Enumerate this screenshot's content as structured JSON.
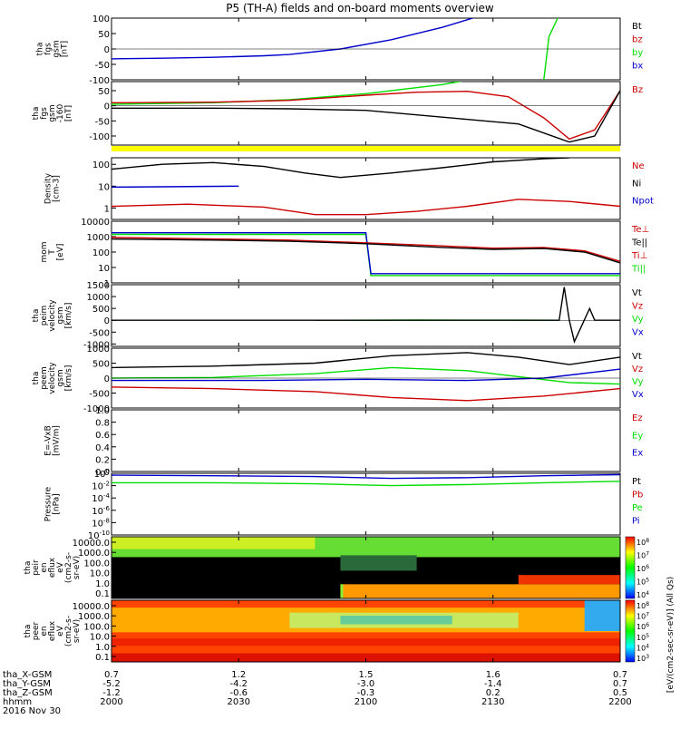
{
  "title": "P5 (TH-A) fields and on-board moments overview",
  "colors": {
    "black": "#000000",
    "red": "#cc0000",
    "green": "#00dd00",
    "blue": "#0000cc",
    "yellow": "#ffff00"
  },
  "chart_data": [
    {
      "type": "line",
      "ylabel": [
        "tha",
        "fgs",
        "gsm",
        "[nT]"
      ],
      "yticks": [
        "100",
        "50",
        "0",
        "-50",
        "-100"
      ],
      "ylim": [
        -100,
        100
      ],
      "legend": [
        {
          "text": "Bt",
          "color": "#000000"
        },
        {
          "text": "bz",
          "color": "#cc0000"
        },
        {
          "text": "by",
          "color": "#00dd00"
        },
        {
          "text": "bx",
          "color": "#0000cc"
        }
      ],
      "series": [
        {
          "name": "bx",
          "color": "#0000cc",
          "x": [
            0,
            0.1,
            0.2,
            0.3,
            0.35,
            0.45,
            0.55,
            0.65,
            0.72,
            0.76
          ],
          "y": [
            -32,
            -30,
            -27,
            -22,
            -18,
            0,
            30,
            70,
            105,
            140
          ]
        },
        {
          "name": "by",
          "color": "#00dd00",
          "x": [
            0.85,
            0.86,
            0.88
          ],
          "y": [
            -100,
            40,
            110
          ]
        }
      ]
    },
    {
      "type": "line",
      "ylabel": [
        "tha",
        "fgs",
        "gsm",
        "-160",
        "[nT]"
      ],
      "yticks": [
        "50",
        "0",
        "-50",
        "-100"
      ],
      "ylim": [
        -130,
        80
      ],
      "legend": [
        {
          "text": "Bz",
          "color": "#cc0000"
        }
      ],
      "series": [
        {
          "name": "green",
          "color": "#00dd00",
          "x": [
            0,
            0.2,
            0.35,
            0.5,
            0.65,
            0.75
          ],
          "y": [
            5,
            10,
            20,
            40,
            70,
            100
          ]
        },
        {
          "name": "red",
          "color": "#cc0000",
          "x": [
            0,
            0.2,
            0.35,
            0.5,
            0.6,
            0.7,
            0.78,
            0.85,
            0.9,
            0.95,
            1
          ],
          "y": [
            10,
            12,
            18,
            35,
            45,
            48,
            30,
            -40,
            -110,
            -80,
            50
          ]
        },
        {
          "name": "black",
          "color": "#000000",
          "x": [
            0,
            0.2,
            0.35,
            0.5,
            0.6,
            0.7,
            0.8,
            0.85,
            0.9,
            0.95,
            1
          ],
          "y": [
            -8,
            -8,
            -10,
            -15,
            -30,
            -45,
            -60,
            -90,
            -120,
            -100,
            50
          ]
        }
      ]
    },
    {
      "type": "line",
      "ylabel": [
        "Density",
        "[cm-3]"
      ],
      "yticks": [
        "100",
        "10",
        "1"
      ],
      "ylim": [
        0.3,
        200
      ],
      "log": true,
      "legend": [
        {
          "text": "Ne",
          "color": "#cc0000"
        },
        {
          "text": "Ni",
          "color": "#000000"
        },
        {
          "text": "Npot",
          "color": "#0000cc"
        }
      ],
      "series": [
        {
          "name": "Ni",
          "color": "#000000",
          "x": [
            0,
            0.1,
            0.2,
            0.3,
            0.38,
            0.45,
            0.55,
            0.65,
            0.75,
            0.85,
            0.9
          ],
          "y": [
            60,
            100,
            120,
            80,
            40,
            25,
            40,
            70,
            130,
            180,
            200
          ]
        },
        {
          "name": "Npot",
          "color": "#0000cc",
          "x": [
            0,
            0.25
          ],
          "y": [
            9,
            10
          ]
        },
        {
          "name": "Ne",
          "color": "#cc0000",
          "x": [
            0,
            0.15,
            0.3,
            0.4,
            0.5,
            0.6,
            0.7,
            0.8,
            0.9,
            1
          ],
          "y": [
            1.2,
            1.5,
            1.1,
            0.5,
            0.5,
            0.7,
            1.2,
            2.5,
            2.0,
            1.2
          ]
        }
      ]
    },
    {
      "type": "line",
      "ylabel": [
        "mom",
        "T",
        "[eV]"
      ],
      "yticks": [
        "10000",
        "1000",
        "100",
        "10",
        "1"
      ],
      "ylim": [
        1,
        10000
      ],
      "log": true,
      "legend": [
        {
          "text": "Te⊥",
          "color": "#cc0000"
        },
        {
          "text": "Te||",
          "color": "#000000"
        },
        {
          "text": "Ti⊥",
          "color": "#cc0000"
        },
        {
          "text": "Ti||",
          "color": "#00dd00"
        }
      ],
      "series": [
        {
          "name": "Ti||",
          "color": "#00dd00",
          "x": [
            0,
            0.5,
            0.51,
            1
          ],
          "y": [
            1400,
            1400,
            3,
            3
          ]
        },
        {
          "name": "Ti⊥",
          "color": "#0000cc",
          "x": [
            0,
            0.5,
            0.51,
            1
          ],
          "y": [
            1800,
            1800,
            4,
            4
          ]
        },
        {
          "name": "Te⊥",
          "color": "#cc0000",
          "x": [
            0,
            0.2,
            0.35,
            0.5,
            0.65,
            0.75,
            0.85,
            0.93,
            1
          ],
          "y": [
            900,
            700,
            600,
            400,
            250,
            180,
            200,
            120,
            25
          ]
        },
        {
          "name": "Te||",
          "color": "#000000",
          "x": [
            0,
            0.2,
            0.35,
            0.5,
            0.65,
            0.75,
            0.85,
            0.93,
            1
          ],
          "y": [
            700,
            600,
            500,
            350,
            200,
            150,
            170,
            100,
            20
          ]
        }
      ]
    },
    {
      "type": "line",
      "ylabel": [
        "tha",
        "peim",
        "velocity",
        "gsm",
        "[km/s]"
      ],
      "yticks": [
        "1500",
        "1000",
        "500",
        "0",
        "-500",
        "-1000"
      ],
      "ylim": [
        -1100,
        1500
      ],
      "legend": [
        {
          "text": "Vt",
          "color": "#000000"
        },
        {
          "text": "Vz",
          "color": "#cc0000"
        },
        {
          "text": "Vy",
          "color": "#00dd00"
        },
        {
          "text": "Vx",
          "color": "#0000cc"
        }
      ],
      "series": [
        {
          "name": "Vy",
          "color": "#00dd00",
          "x": [
            0.4,
            0.6,
            0.8,
            0.88
          ],
          "y": [
            0,
            10,
            5,
            0
          ]
        },
        {
          "name": "Vt",
          "color": "#000000",
          "x": [
            0,
            0.4,
            0.6,
            0.88,
            0.89,
            0.9,
            0.91,
            0.94,
            0.95,
            1
          ],
          "y": [
            0,
            0,
            0,
            0,
            1400,
            0,
            -900,
            500,
            0,
            0
          ]
        }
      ]
    },
    {
      "type": "line",
      "ylabel": [
        "tha",
        "peem",
        "velocity",
        "gsm",
        "[km/s]"
      ],
      "yticks": [
        "1000",
        "500",
        "0",
        "-500",
        "-1000"
      ],
      "ylim": [
        -1000,
        1000
      ],
      "legend": [
        {
          "text": "Vt",
          "color": "#000000"
        },
        {
          "text": "Vz",
          "color": "#cc0000"
        },
        {
          "text": "Vy",
          "color": "#00dd00"
        },
        {
          "text": "Vx",
          "color": "#0000cc"
        }
      ],
      "series": [
        {
          "name": "Vt",
          "color": "#000000",
          "x": [
            0,
            0.2,
            0.4,
            0.55,
            0.7,
            0.8,
            0.9,
            1
          ],
          "y": [
            350,
            400,
            500,
            750,
            850,
            700,
            450,
            700
          ]
        },
        {
          "name": "Vy",
          "color": "#00dd00",
          "x": [
            0,
            0.2,
            0.4,
            0.55,
            0.7,
            0.8,
            0.9,
            1
          ],
          "y": [
            0,
            20,
            150,
            350,
            250,
            50,
            -150,
            -200
          ]
        },
        {
          "name": "Vx",
          "color": "#0000cc",
          "x": [
            0,
            0.3,
            0.5,
            0.7,
            0.85,
            1
          ],
          "y": [
            -80,
            -80,
            -40,
            -80,
            0,
            300
          ]
        },
        {
          "name": "Vz",
          "color": "#cc0000",
          "x": [
            0,
            0.2,
            0.4,
            0.55,
            0.7,
            0.85,
            1
          ],
          "y": [
            -300,
            -350,
            -450,
            -650,
            -750,
            -600,
            -350
          ]
        }
      ]
    },
    {
      "type": "line",
      "ylabel": [
        "E=-VxB",
        "[mV/m]"
      ],
      "yticks": [
        "1.0",
        "0.8",
        "0.6",
        "0.4",
        "0.2",
        "0.0"
      ],
      "ylim": [
        0,
        1
      ],
      "legend": [
        {
          "text": "Ez",
          "color": "#cc0000"
        },
        {
          "text": "Ey",
          "color": "#00dd00"
        },
        {
          "text": "Ex",
          "color": "#0000cc"
        }
      ],
      "series": []
    },
    {
      "type": "line",
      "ylabel": [
        "Pressure",
        "[nPa]"
      ],
      "yticks": [
        "10^0",
        "10^-2",
        "10^-4",
        "10^-6",
        "10^-8",
        "10^-10"
      ],
      "ylim": [
        1e-10,
        1
      ],
      "log": true,
      "legend": [
        {
          "text": "Pt",
          "color": "#000000"
        },
        {
          "text": "Pb",
          "color": "#cc0000"
        },
        {
          "text": "Pe",
          "color": "#00dd00"
        },
        {
          "text": "Pi",
          "color": "#0000cc"
        }
      ],
      "series": [
        {
          "name": "Pt",
          "color": "#0000cc",
          "x": [
            0,
            0.2,
            0.4,
            0.55,
            0.7,
            0.85,
            1
          ],
          "y": [
            0.5,
            0.4,
            0.3,
            0.15,
            0.2,
            0.4,
            0.6
          ]
        },
        {
          "name": "Pe",
          "color": "#00dd00",
          "x": [
            0,
            0.2,
            0.4,
            0.55,
            0.7,
            0.85,
            1
          ],
          "y": [
            0.03,
            0.03,
            0.02,
            0.01,
            0.015,
            0.03,
            0.05
          ]
        }
      ]
    },
    {
      "type": "heatmap",
      "ylabel": [
        "tha",
        "peir",
        "en",
        "eflux",
        "eV",
        "(cm2-s-",
        "sr-eV)"
      ],
      "yticks": [
        "10000.0",
        "1000.0",
        "100.0",
        "10.0",
        "1.0",
        "0.1"
      ]
    },
    {
      "type": "heatmap",
      "ylabel": [
        "tha",
        "peer",
        "en",
        "eflux",
        "eV",
        "(cm2-s-",
        "sr-eV)"
      ],
      "yticks": [
        "10000.0",
        "1000.0",
        "100.0",
        "10.0",
        "1.0",
        "0.1"
      ]
    }
  ],
  "colorbar": {
    "label": "[eV/(cm2-sec-sr-eV)] (All Qs)",
    "ticks_top": [
      "10^8",
      "10^7",
      "10^6",
      "10^5",
      "10^4"
    ],
    "ticks_bottom": [
      "10^8",
      "10^7",
      "10^6",
      "10^5",
      "10^4",
      "10^3"
    ]
  },
  "xaxis": {
    "labels": [
      "tha_X-GSM",
      "tha_Y-GSM",
      "tha_Z-GSM",
      "hhmm"
    ],
    "date": "2016 Nov 30",
    "columns": [
      [
        "0.7",
        "-5.2",
        "-1.2",
        "2000"
      ],
      [
        "1.2",
        "-4.2",
        "-0.6",
        "2030"
      ],
      [
        "1.5",
        "-3.0",
        "-0.3",
        "2100"
      ],
      [
        "1.6",
        "-1.4",
        "0.2",
        "2130"
      ],
      [
        "0.7",
        "0.7",
        "0.5",
        "2200"
      ]
    ]
  }
}
